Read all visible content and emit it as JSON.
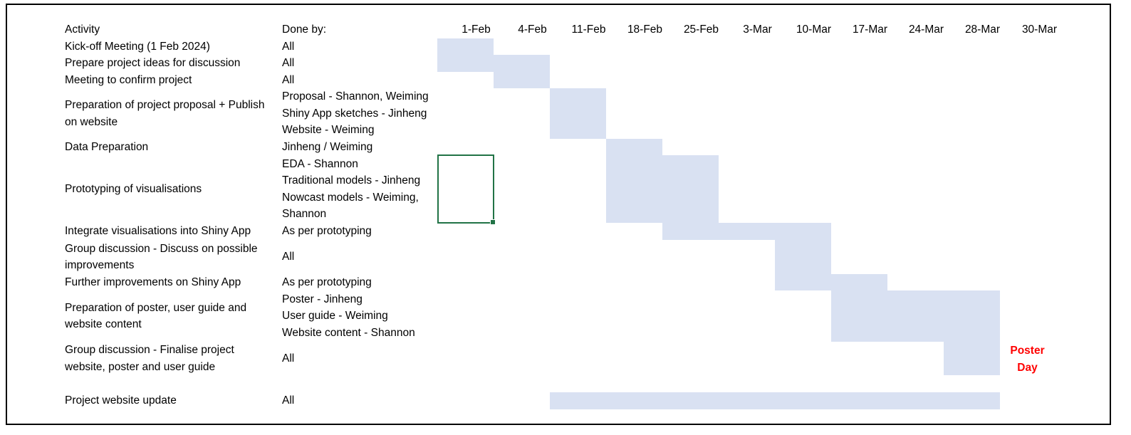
{
  "headers": {
    "activity": "Activity",
    "done_by": "Done by:",
    "dates": [
      "1-Feb",
      "4-Feb",
      "11-Feb",
      "18-Feb",
      "25-Feb",
      "3-Mar",
      "10-Mar",
      "17-Mar",
      "24-Mar",
      "28-Mar",
      "30-Mar"
    ]
  },
  "rows": [
    {
      "activity": [
        "Kick-off Meeting (1 Feb 2024)"
      ],
      "done_by": [
        "All"
      ],
      "start": 0,
      "end": 0
    },
    {
      "activity": [
        "Prepare project ideas for discussion"
      ],
      "done_by": [
        "All"
      ],
      "start": 0,
      "end": 1
    },
    {
      "activity": [
        "Meeting to confirm project"
      ],
      "done_by": [
        "All"
      ],
      "start": 1,
      "end": 1
    },
    {
      "activity": [
        "Preparation of project proposal + Publish",
        "on website"
      ],
      "done_by": [
        "Proposal - Shannon, Weiming",
        "Shiny App sketches - Jinheng",
        "Website - Weiming"
      ],
      "start": 2,
      "end": 2
    },
    {
      "activity": [
        "Data Preparation"
      ],
      "done_by": [
        "Jinheng / Weiming"
      ],
      "start": 3,
      "end": 3
    },
    {
      "activity": [
        "Prototyping of visualisations"
      ],
      "done_by": [
        "EDA - Shannon",
        "Traditional models - Jinheng",
        "Nowcast models - Weiming,",
        "Shannon"
      ],
      "start": 3,
      "end": 4
    },
    {
      "activity": [
        "Integrate visualisations into Shiny App"
      ],
      "done_by": [
        "As per prototyping"
      ],
      "start": 4,
      "end": 6
    },
    {
      "activity": [
        "Group discussion - Discuss on possible",
        "improvements"
      ],
      "done_by": [
        "All"
      ],
      "start": 6,
      "end": 6
    },
    {
      "activity": [
        "Further improvements on Shiny App"
      ],
      "done_by": [
        "As per prototyping"
      ],
      "start": 6,
      "end": 7
    },
    {
      "activity": [
        "Preparation of poster, user guide and",
        "website content"
      ],
      "done_by": [
        "Poster - Jinheng",
        "User guide - Weiming",
        "Website content - Shannon"
      ],
      "start": 7,
      "end": 9
    },
    {
      "activity": [
        "Group discussion - Finalise project",
        "website, poster and user guide"
      ],
      "done_by": [
        "All"
      ],
      "start": 9,
      "end": 9
    },
    {
      "activity": [
        "Project website update"
      ],
      "done_by": [
        "All"
      ],
      "start": 2,
      "end": 9
    }
  ],
  "poster_day": {
    "line1": "Poster",
    "line2": "Day"
  },
  "colors": {
    "bar": "#d9e1f2",
    "poster_day": "#ff0000",
    "selection": "#217346"
  }
}
